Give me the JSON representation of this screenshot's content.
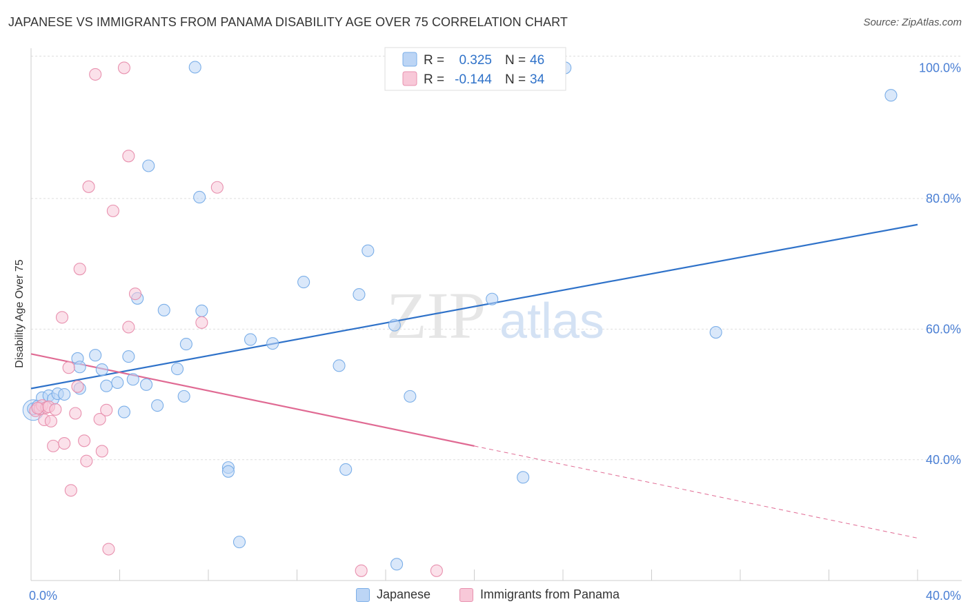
{
  "title": "JAPANESE VS IMMIGRANTS FROM PANAMA DISABILITY AGE OVER 75 CORRELATION CHART",
  "source": "Source: ZipAtlas.com",
  "watermark": {
    "zip": "ZIP",
    "atlas": "atlas"
  },
  "chart_data": {
    "type": "scatter",
    "ylabel": "Disability Age Over 75",
    "xlim": [
      0,
      40
    ],
    "ylim": [
      21.5,
      103
    ],
    "x_tick_labels": [
      {
        "value": 0,
        "label": "0.0%"
      },
      {
        "value": 40,
        "label": "40.0%"
      }
    ],
    "y_tick_labels": [
      {
        "value": 40,
        "label": "40.0%"
      },
      {
        "value": 60,
        "label": "60.0%"
      },
      {
        "value": 80,
        "label": "80.0%"
      },
      {
        "value": 100,
        "label": "100.0%"
      }
    ],
    "x_minor_ticks": [
      4,
      8,
      12,
      16,
      20,
      24,
      28,
      32,
      36
    ],
    "gridlines_y": [
      40,
      60,
      80,
      101.8
    ],
    "legend": [
      {
        "name": "Japanese",
        "r_label": "R =",
        "r": "0.325",
        "n_label": "N =",
        "n": "46",
        "color": "#7aaee8",
        "fill": "#bcd5f5"
      },
      {
        "name": "Immigrants from Panama",
        "r_label": "R =",
        "r": "-0.144",
        "n_label": "N =",
        "n": "34",
        "color": "#e890ae",
        "fill": "#f8c8d8"
      }
    ],
    "series": [
      {
        "name": "Japanese",
        "color": "#7aaee8",
        "fill": "#bcd5f5",
        "trend": {
          "x0": 0,
          "y0": 50.9,
          "x1": 40,
          "y1": 76.0,
          "color": "#2f72c9"
        },
        "points": [
          [
            0.1,
            47.8
          ],
          [
            0.3,
            48.2
          ],
          [
            0.5,
            49.5
          ],
          [
            0.8,
            49.8
          ],
          [
            1.0,
            49.3
          ],
          [
            1.2,
            50.1
          ],
          [
            1.5,
            50.0
          ],
          [
            2.2,
            50.9
          ],
          [
            2.1,
            55.5
          ],
          [
            2.2,
            54.2
          ],
          [
            2.9,
            56.0
          ],
          [
            3.2,
            53.8
          ],
          [
            3.4,
            51.3
          ],
          [
            3.9,
            51.8
          ],
          [
            4.2,
            47.3
          ],
          [
            4.4,
            55.8
          ],
          [
            4.6,
            52.3
          ],
          [
            4.8,
            64.7
          ],
          [
            5.2,
            51.5
          ],
          [
            5.3,
            85.0
          ],
          [
            5.7,
            48.3
          ],
          [
            6.0,
            62.9
          ],
          [
            6.6,
            53.9
          ],
          [
            6.9,
            49.7
          ],
          [
            7.0,
            57.7
          ],
          [
            7.4,
            100.1
          ],
          [
            7.6,
            80.2
          ],
          [
            7.7,
            62.8
          ],
          [
            8.9,
            38.8
          ],
          [
            8.9,
            38.2
          ],
          [
            9.4,
            27.4
          ],
          [
            9.9,
            58.4
          ],
          [
            10.9,
            57.8
          ],
          [
            12.3,
            67.2
          ],
          [
            13.9,
            54.4
          ],
          [
            14.2,
            38.5
          ],
          [
            14.8,
            65.3
          ],
          [
            15.2,
            72.0
          ],
          [
            16.5,
            24.0
          ],
          [
            16.4,
            60.6
          ],
          [
            17.1,
            49.7
          ],
          [
            20.8,
            64.6
          ],
          [
            22.2,
            37.3
          ],
          [
            24.1,
            100.0
          ],
          [
            30.9,
            59.5
          ],
          [
            38.8,
            95.8
          ]
        ]
      },
      {
        "name": "Immigrants from Panama",
        "color": "#e890ae",
        "fill": "#f8c8d8",
        "trend": {
          "x0": 0,
          "y0": 56.2,
          "x1": 20.0,
          "y1": 42.1,
          "color": "#e06a93"
        },
        "trend_dashed": {
          "x0": 20.0,
          "y0": 42.1,
          "x1": 40,
          "y1": 28.0
        },
        "points": [
          [
            0.2,
            47.5
          ],
          [
            0.4,
            47.8
          ],
          [
            0.5,
            48.3
          ],
          [
            0.6,
            46.1
          ],
          [
            0.7,
            48.0
          ],
          [
            0.9,
            45.9
          ],
          [
            1.0,
            42.1
          ],
          [
            1.4,
            61.8
          ],
          [
            1.5,
            42.5
          ],
          [
            1.7,
            54.1
          ],
          [
            1.8,
            35.3
          ],
          [
            2.0,
            47.1
          ],
          [
            2.1,
            51.2
          ],
          [
            2.2,
            69.2
          ],
          [
            2.4,
            42.9
          ],
          [
            2.5,
            39.8
          ],
          [
            2.6,
            81.8
          ],
          [
            2.9,
            99.0
          ],
          [
            3.1,
            46.2
          ],
          [
            3.2,
            41.3
          ],
          [
            3.4,
            47.6
          ],
          [
            3.5,
            26.3
          ],
          [
            3.7,
            78.1
          ],
          [
            4.2,
            100.0
          ],
          [
            4.4,
            60.3
          ],
          [
            4.4,
            86.5
          ],
          [
            4.7,
            65.4
          ],
          [
            7.7,
            61.0
          ],
          [
            8.4,
            81.7
          ],
          [
            14.9,
            23.0
          ],
          [
            18.3,
            23.0
          ],
          [
            0.3,
            47.9
          ],
          [
            0.8,
            48.1
          ],
          [
            1.1,
            47.7
          ]
        ]
      }
    ]
  }
}
